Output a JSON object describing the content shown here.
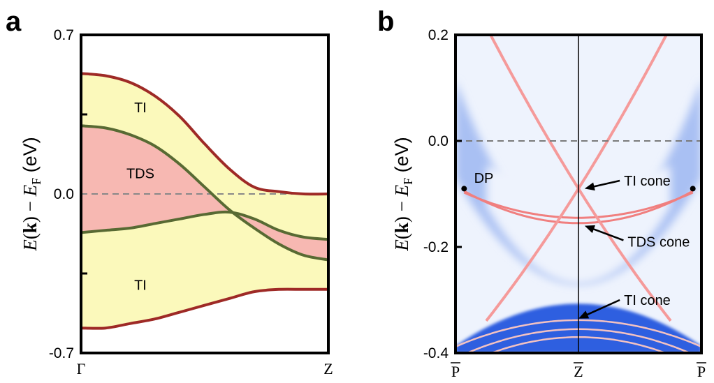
{
  "chart_data": [
    {
      "panel": "a",
      "type": "line",
      "title": "",
      "xlabel": "",
      "ylabel": "E(k) − E_F (eV)",
      "ylabel_parts": {
        "E": "E",
        "k": "k",
        "rest": " − ",
        "sub": "F",
        "unit": " (eV)"
      },
      "xlim": [
        0,
        1
      ],
      "ylim": [
        -0.7,
        0.7
      ],
      "yticks": [
        {
          "value": 0.7,
          "label": "0.7"
        },
        {
          "value": 0.0,
          "label": "0.0"
        },
        {
          "value": -0.7,
          "label": "-0.7"
        }
      ],
      "minor_yticks": [
        0.35,
        -0.35
      ],
      "xticks": [
        {
          "value": 0,
          "label": "Γ"
        },
        {
          "value": 1,
          "label": "Z"
        }
      ],
      "fermi_level": 0.0,
      "x": [
        0,
        0.1,
        0.2,
        0.3,
        0.4,
        0.5,
        0.6,
        0.7,
        0.8,
        0.9,
        1.0
      ],
      "series": [
        {
          "name": "outer upper band",
          "color": "#9e2a26",
          "values": [
            0.53,
            0.52,
            0.49,
            0.43,
            0.34,
            0.22,
            0.11,
            0.03,
            0.01,
            0.0,
            0.0
          ]
        },
        {
          "name": "inner upper band",
          "color": "#586a33",
          "values": [
            0.3,
            0.29,
            0.26,
            0.21,
            0.13,
            0.03,
            -0.07,
            -0.15,
            -0.22,
            -0.27,
            -0.29
          ]
        },
        {
          "name": "inner lower band",
          "color": "#586a33",
          "values": [
            -0.17,
            -0.16,
            -0.15,
            -0.13,
            -0.11,
            -0.09,
            -0.08,
            -0.11,
            -0.16,
            -0.19,
            -0.2
          ]
        },
        {
          "name": "outer lower band",
          "color": "#9e2a26",
          "values": [
            -0.59,
            -0.59,
            -0.57,
            -0.55,
            -0.52,
            -0.49,
            -0.46,
            -0.43,
            -0.42,
            -0.42,
            -0.42
          ]
        }
      ],
      "fills": {
        "ti": "#fbf9bb",
        "tds": "#f7b8b2"
      },
      "annotations": [
        {
          "text": "TI",
          "x": 0.24,
          "y": 0.38
        },
        {
          "text": "TDS",
          "x": 0.24,
          "y": 0.09
        },
        {
          "text": "TI",
          "x": 0.24,
          "y": -0.4
        }
      ]
    },
    {
      "panel": "b",
      "type": "heatmap",
      "title": "",
      "xlabel": "",
      "ylabel": "E(k) − E_F (eV)",
      "ylabel_parts": {
        "E": "E",
        "k": "k",
        "rest": " − ",
        "sub": "F",
        "unit": " (eV)"
      },
      "xlim": [
        -1,
        1
      ],
      "ylim": [
        -0.4,
        0.2
      ],
      "yticks": [
        {
          "value": 0.2,
          "label": "0.2"
        },
        {
          "value": 0.0,
          "label": "0.0"
        },
        {
          "value": -0.2,
          "label": "-0.2"
        },
        {
          "value": -0.4,
          "label": "-0.4"
        }
      ],
      "xticks": [
        {
          "value": -1,
          "label": "P"
        },
        {
          "value": 0,
          "label": "Z"
        },
        {
          "value": 1,
          "label": "P"
        }
      ],
      "fermi_level": 0.0,
      "colors": {
        "bulk": "#3a6ae0",
        "bulk_light": "#9fb7f2",
        "background": "#eef3fd",
        "surface": "#f07f7f"
      },
      "dirac_points": [
        {
          "x": -0.93,
          "y": -0.09
        },
        {
          "x": 0.93,
          "y": -0.09
        }
      ],
      "annotations": [
        {
          "text": "DP",
          "x": -0.77,
          "y": -0.07
        },
        {
          "text": "TI cone",
          "x": 0.37,
          "y": -0.075,
          "target": [
            0.05,
            -0.09
          ]
        },
        {
          "text": "TDS cone",
          "x": 0.4,
          "y": -0.19,
          "target": [
            0.05,
            -0.16
          ]
        },
        {
          "text": "TI cone",
          "x": 0.37,
          "y": -0.3,
          "target": [
            0.0,
            -0.335
          ]
        }
      ]
    }
  ],
  "panels": {
    "a_label": "a",
    "b_label": "b"
  }
}
